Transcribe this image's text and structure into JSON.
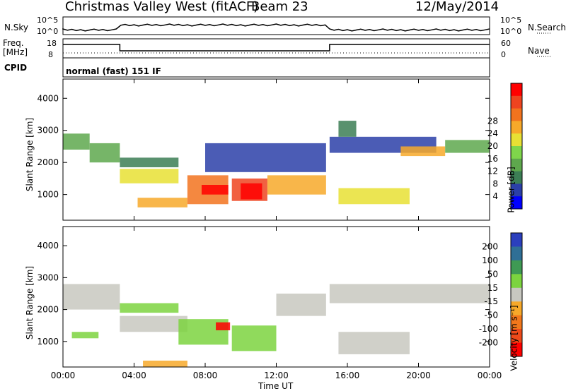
{
  "header": {
    "station": "Christmas Valley West (fitACF)",
    "beam": "Beam 23",
    "date": "12/May/2014"
  },
  "strip": {
    "nsky_label": "N.Sky",
    "nsky_ticks": [
      "10^5",
      "10^0"
    ],
    "nsearch_label": "N.Search",
    "nsearch_ticks": [
      "10^5",
      "10^0"
    ],
    "freq_label": "Freq.",
    "freq_unit": "[MHz]",
    "freq_ticks": [
      "18",
      "8"
    ],
    "nave_label": "Nave",
    "nave_ticks": [
      "60",
      "0"
    ],
    "cpid_label": "CPID",
    "cpid_value": "normal (fast) 151 IF"
  },
  "colors": {
    "power": [
      "#0000ff",
      "#2b3fa8",
      "#3c7e55",
      "#5ea84d",
      "#7fd64b",
      "#e8e034",
      "#f7a92a",
      "#f2731e",
      "#ee4420",
      "#ff0000"
    ],
    "velocity": [
      "#2b3fbd",
      "#2f6f96",
      "#3f9a54",
      "#7cd43f",
      "#c8c8c0",
      "#f7a92a",
      "#f2781c",
      "#ee4a1a",
      "#ff0000"
    ]
  },
  "chart_data": [
    {
      "type": "heatmap",
      "name": "power",
      "ylabel": "Slant Range [km]",
      "y_ticks": [
        "1000",
        "2000",
        "3000",
        "4000"
      ],
      "ylim": [
        200,
        4600
      ],
      "xlim": [
        0,
        24
      ],
      "colorbar_label": "Power [dB]",
      "colorbar_ticks": [
        "4",
        "8",
        "12",
        "16",
        "20",
        "24",
        "28"
      ],
      "bands": [
        {
          "t": [
            0.0,
            1.5
          ],
          "r": [
            2400,
            2900
          ],
          "level": 3
        },
        {
          "t": [
            1.5,
            3.2
          ],
          "r": [
            2000,
            2600
          ],
          "level": 3
        },
        {
          "t": [
            3.2,
            6.5
          ],
          "r": [
            1350,
            1800
          ],
          "level": 5
        },
        {
          "t": [
            3.2,
            6.5
          ],
          "r": [
            1850,
            2150
          ],
          "level": 2
        },
        {
          "t": [
            4.2,
            7.0
          ],
          "r": [
            600,
            900
          ],
          "level": 6
        },
        {
          "t": [
            7.0,
            9.3
          ],
          "r": [
            700,
            1600
          ],
          "level": 7
        },
        {
          "t": [
            7.8,
            9.3
          ],
          "r": [
            1000,
            1300
          ],
          "level": 9
        },
        {
          "t": [
            9.5,
            11.5
          ],
          "r": [
            800,
            1500
          ],
          "level": 8
        },
        {
          "t": [
            10.0,
            11.2
          ],
          "r": [
            850,
            1350
          ],
          "level": 9
        },
        {
          "t": [
            11.5,
            14.8
          ],
          "r": [
            1000,
            1600
          ],
          "level": 6
        },
        {
          "t": [
            8.0,
            14.8
          ],
          "r": [
            1700,
            2600
          ],
          "level": 1
        },
        {
          "t": [
            15.5,
            19.5
          ],
          "r": [
            700,
            1200
          ],
          "level": 5
        },
        {
          "t": [
            15.0,
            21.0
          ],
          "r": [
            2300,
            2800
          ],
          "level": 1
        },
        {
          "t": [
            19.0,
            21.5
          ],
          "r": [
            2200,
            2500
          ],
          "level": 6
        },
        {
          "t": [
            21.5,
            24.0
          ],
          "r": [
            2300,
            2700
          ],
          "level": 3
        },
        {
          "t": [
            15.5,
            16.5
          ],
          "r": [
            2800,
            3300
          ],
          "level": 2
        }
      ]
    },
    {
      "type": "heatmap",
      "name": "velocity",
      "ylabel": "Slant Range [km]",
      "y_ticks": [
        "1000",
        "2000",
        "3000",
        "4000"
      ],
      "ylim": [
        200,
        4600
      ],
      "xlim": [
        0,
        24
      ],
      "xlabel": "Time UT",
      "x_ticks": [
        "00:00",
        "04:00",
        "08:00",
        "12:00",
        "16:00",
        "20:00",
        "00:00"
      ],
      "colorbar_label": "Velocity [m s⁻¹]",
      "colorbar_ticks": [
        "200",
        "100",
        "50",
        "15",
        "-15",
        "-50",
        "-100",
        "-200"
      ],
      "bands": [
        {
          "t": [
            0.0,
            3.2
          ],
          "r": [
            2000,
            2800
          ],
          "level": 4
        },
        {
          "t": [
            3.2,
            7.0
          ],
          "r": [
            1300,
            1800
          ],
          "level": 4
        },
        {
          "t": [
            3.2,
            6.5
          ],
          "r": [
            1900,
            2200
          ],
          "level": 3
        },
        {
          "t": [
            6.5,
            9.3
          ],
          "r": [
            900,
            1700
          ],
          "level": 3
        },
        {
          "t": [
            8.6,
            9.4
          ],
          "r": [
            1350,
            1600
          ],
          "level": 8
        },
        {
          "t": [
            9.5,
            12.0
          ],
          "r": [
            700,
            1500
          ],
          "level": 3
        },
        {
          "t": [
            12.0,
            14.8
          ],
          "r": [
            1800,
            2500
          ],
          "level": 4
        },
        {
          "t": [
            15.5,
            19.5
          ],
          "r": [
            600,
            1300
          ],
          "level": 4
        },
        {
          "t": [
            15.0,
            24.0
          ],
          "r": [
            2200,
            2800
          ],
          "level": 4
        },
        {
          "t": [
            4.5,
            7.0
          ],
          "r": [
            200,
            400
          ],
          "level": 5
        },
        {
          "t": [
            0.5,
            2.0
          ],
          "r": [
            1100,
            1300
          ],
          "level": 3
        }
      ]
    }
  ]
}
